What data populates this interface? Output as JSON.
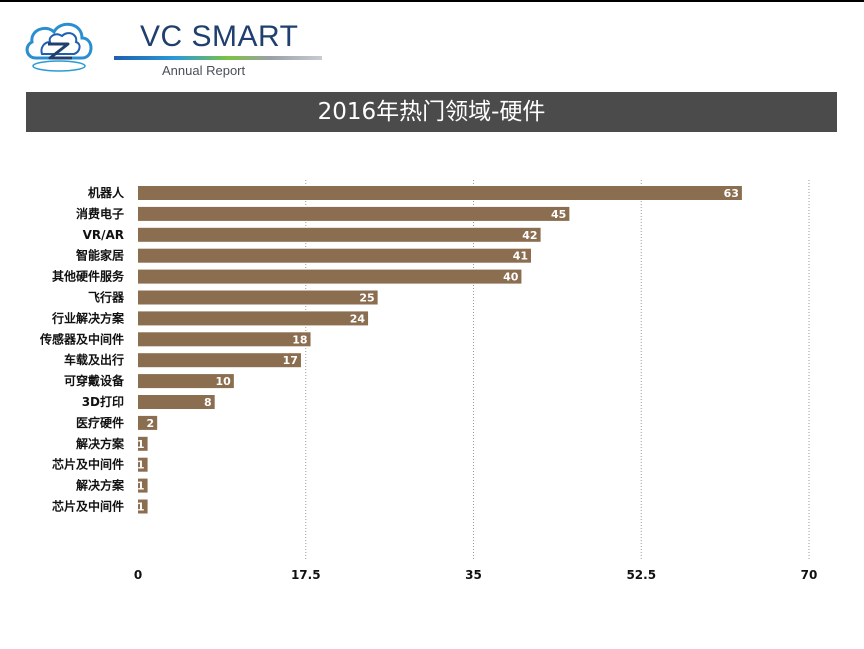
{
  "header": {
    "brand_name": "VC SMART",
    "brand_sub": "Annual Report",
    "title": "2016年热门领域-硬件"
  },
  "colors": {
    "bar": "#8b6d50",
    "title_bg": "#4b4b4b",
    "grid": "#9a9a9a",
    "brand_blue": "#1f3f6e"
  },
  "chart_data": {
    "type": "bar",
    "orientation": "horizontal",
    "title": "2016年热门领域-硬件",
    "categories": [
      "机器人",
      "消费电子",
      "VR/AR",
      "智能家居",
      "其他硬件服务",
      "飞行器",
      "行业解决方案",
      "传感器及中间件",
      "车载及出行",
      "可穿戴设备",
      "3D打印",
      "医疗硬件",
      "解决方案",
      "芯片及中间件",
      "解决方案",
      "芯片及中间件"
    ],
    "values": [
      63,
      45,
      42,
      41,
      40,
      25,
      24,
      18,
      17,
      10,
      8,
      2,
      1,
      1,
      1,
      1
    ],
    "xlim": [
      0,
      70
    ],
    "xticks": [
      0,
      17.5,
      35,
      52.5,
      70
    ],
    "xtick_labels": [
      "0",
      "17.5",
      "35",
      "52.5",
      "70"
    ],
    "grid": "vertical dotted",
    "legend": "none"
  }
}
